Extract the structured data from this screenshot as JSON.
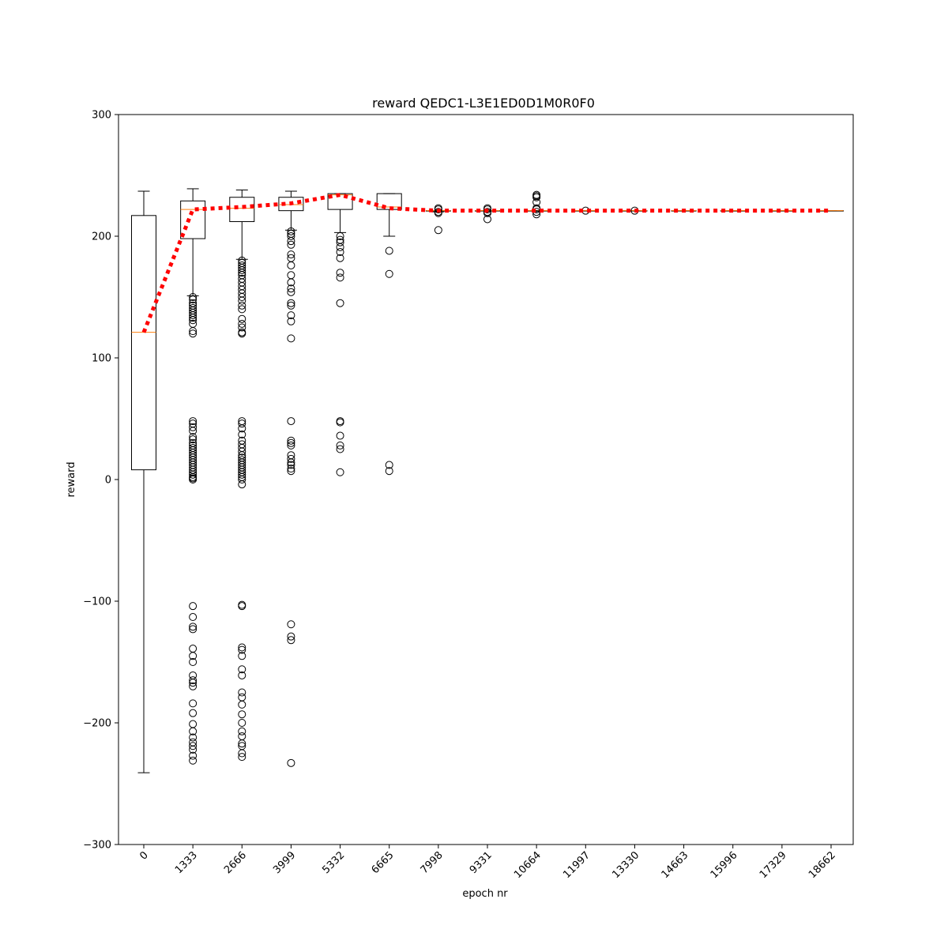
{
  "chart_data": {
    "type": "box",
    "title": "reward QEDC1-L3E1ED0D1M0R0F0",
    "xlabel": "epoch nr",
    "ylabel": "reward",
    "ylim": [
      -300,
      300
    ],
    "yticks": [
      -300,
      -200,
      -100,
      0,
      100,
      200,
      300
    ],
    "ytick_labels": [
      "−300",
      "−200",
      "−100",
      "0",
      "100",
      "200",
      "300"
    ],
    "categories": [
      "0",
      "1333",
      "2666",
      "3999",
      "5332",
      "6665",
      "7998",
      "9331",
      "10664",
      "11997",
      "13330",
      "14663",
      "15996",
      "17329",
      "18662"
    ],
    "boxes": [
      {
        "whislo": -241,
        "q1": 8,
        "med": 121,
        "q3": 217,
        "whishi": 237,
        "fliers": []
      },
      {
        "whislo": 151,
        "q1": 198,
        "med": 222,
        "q3": 229,
        "whishi": 239,
        "fliers": [
          150,
          148,
          145,
          143,
          141,
          139,
          137,
          135,
          133,
          131,
          128,
          122,
          120,
          48,
          46,
          43,
          40,
          35,
          33,
          30,
          28,
          26,
          24,
          22,
          20,
          18,
          16,
          14,
          12,
          10,
          8,
          6,
          4,
          2,
          1,
          0,
          -104,
          -113,
          -121,
          -123,
          -139,
          -145,
          -150,
          -161,
          -165,
          -167,
          -170,
          -184,
          -192,
          -201,
          -207,
          -212,
          -216,
          -219,
          -222,
          -227,
          -231
        ]
      },
      {
        "whislo": 181,
        "q1": 212,
        "med": 223,
        "q3": 232,
        "whishi": 238,
        "fliers": [
          180,
          178,
          176,
          174,
          172,
          170,
          168,
          165,
          162,
          159,
          156,
          153,
          150,
          147,
          143,
          140,
          132,
          128,
          125,
          121,
          120,
          48,
          46,
          42,
          37,
          32,
          29,
          26,
          23,
          20,
          18,
          16,
          14,
          12,
          10,
          8,
          6,
          4,
          2,
          0,
          -4,
          -103,
          -104,
          -138,
          -140,
          -145,
          -156,
          -161,
          -175,
          -179,
          -185,
          -193,
          -200,
          -207,
          -211,
          -217,
          -219,
          -225,
          -228
        ]
      },
      {
        "whislo": 205,
        "q1": 221,
        "med": 226,
        "q3": 232,
        "whishi": 237,
        "fliers": [
          204,
          202,
          200,
          196,
          193,
          185,
          182,
          176,
          168,
          162,
          157,
          154,
          145,
          143,
          135,
          130,
          116,
          48,
          32,
          30,
          28,
          20,
          17,
          14,
          12,
          9,
          7,
          -119,
          -129,
          -132,
          -233
        ]
      },
      {
        "whislo": 203,
        "q1": 222,
        "med": 234,
        "q3": 235,
        "whishi": 235,
        "fliers": [
          200,
          197,
          195,
          191,
          187,
          182,
          170,
          166,
          145,
          48,
          47,
          36,
          28,
          25,
          6
        ]
      },
      {
        "whislo": 200,
        "q1": 222,
        "med": 224,
        "q3": 235,
        "whishi": 235,
        "fliers": [
          188,
          169,
          12,
          7
        ]
      },
      {
        "whislo": 220,
        "q1": 221,
        "med": 221,
        "q3": 221,
        "whishi": 221,
        "fliers": [
          223,
          222,
          220,
          219,
          205
        ]
      },
      {
        "whislo": 221,
        "q1": 221,
        "med": 221,
        "q3": 221,
        "whishi": 221,
        "fliers": [
          223,
          222,
          220,
          219,
          214
        ]
      },
      {
        "whislo": 221,
        "q1": 221,
        "med": 221,
        "q3": 221,
        "whishi": 221,
        "fliers": [
          234,
          233,
          232,
          228,
          223,
          222,
          220,
          218
        ]
      },
      {
        "whislo": 221,
        "q1": 221,
        "med": 221,
        "q3": 221,
        "whishi": 221,
        "fliers": [
          221
        ]
      },
      {
        "whislo": 221,
        "q1": 221,
        "med": 221,
        "q3": 221,
        "whishi": 221,
        "fliers": [
          221
        ]
      },
      {
        "whislo": 221,
        "q1": 221,
        "med": 221,
        "q3": 221,
        "whishi": 221,
        "fliers": []
      },
      {
        "whislo": 221,
        "q1": 221,
        "med": 221,
        "q3": 221,
        "whishi": 221,
        "fliers": []
      },
      {
        "whislo": 221,
        "q1": 221,
        "med": 221,
        "q3": 221,
        "whishi": 221,
        "fliers": []
      },
      {
        "whislo": 221,
        "q1": 221,
        "med": 221,
        "q3": 221,
        "whishi": 221,
        "fliers": []
      }
    ],
    "mean_line": {
      "values": [
        121,
        222,
        224,
        227,
        234,
        223,
        221,
        221,
        221,
        221,
        221,
        221,
        221,
        221,
        221
      ],
      "style": "dotted",
      "color": "#ff0000"
    },
    "box_color": "#000000",
    "median_color": "#ff7f0e",
    "grid": false,
    "legend": "none"
  }
}
